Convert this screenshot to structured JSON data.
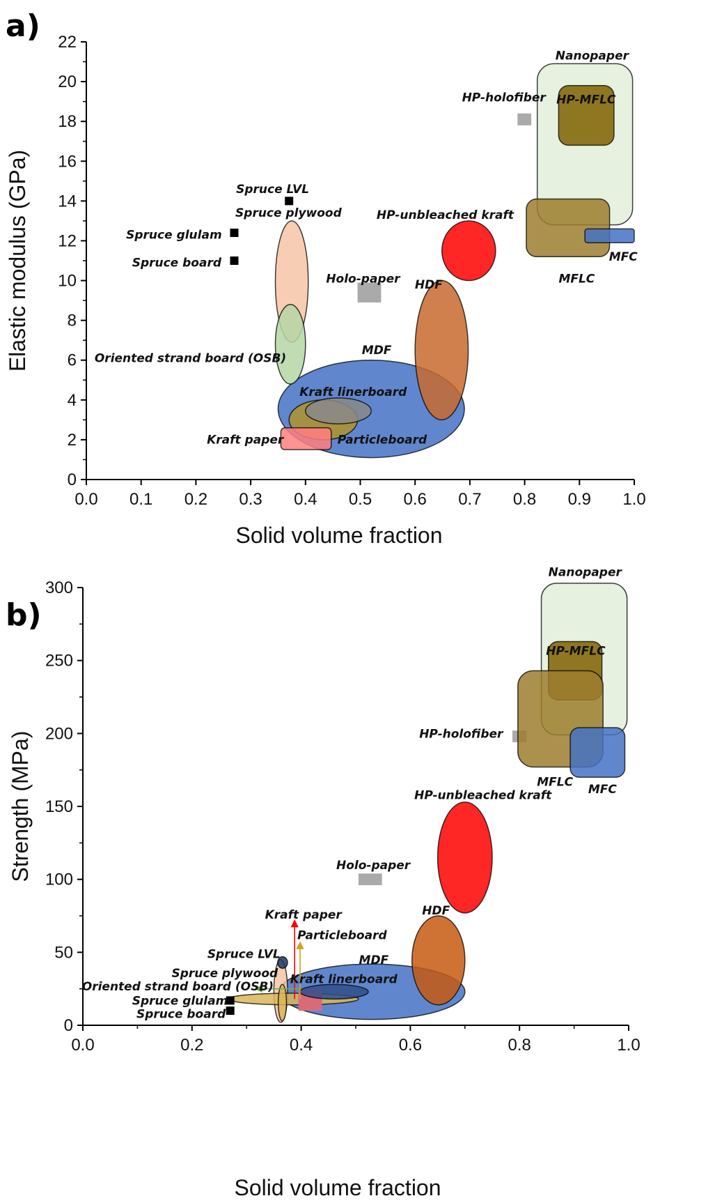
{
  "chart_data": [
    {
      "panel": "a)",
      "type": "scatter",
      "xlabel": "Solid volume fraction",
      "ylabel": "Elastic modulus (GPa)",
      "xlim": [
        0.0,
        1.0
      ],
      "ylim": [
        0,
        22
      ],
      "xticks": [
        0.0,
        0.1,
        0.2,
        0.3,
        0.4,
        0.5,
        0.6,
        0.7,
        0.8,
        0.9,
        1.0
      ],
      "xtick_labels": [
        "0.0",
        "0.1",
        "0.2",
        "0.3",
        "0.4",
        "0.5",
        "0.6",
        "0.7",
        "0.8",
        "0.9",
        "1.0"
      ],
      "yticks": [
        0,
        2,
        4,
        6,
        8,
        10,
        12,
        14,
        16,
        18,
        20,
        22
      ],
      "ytick_labels": [
        "0",
        "2",
        "4",
        "6",
        "8",
        "10",
        "12",
        "14",
        "16",
        "18",
        "20",
        "22"
      ],
      "grid": false,
      "regions": [
        {
          "name": "MDF",
          "shape": "ellipse",
          "color": "#4472c4",
          "x": [
            0.35,
            0.69
          ],
          "y": [
            1.1,
            6.0
          ]
        },
        {
          "name": "Particleboard",
          "shape": "ellipse",
          "color": "#b3922a",
          "x": [
            0.37,
            0.495
          ],
          "y": [
            2.0,
            4.0
          ]
        },
        {
          "name": "Kraft linerboard",
          "shape": "ellipse",
          "color": "#8a8a8a",
          "x": [
            0.4,
            0.52
          ],
          "y": [
            2.8,
            4.1
          ]
        },
        {
          "name": "Kraft paper",
          "shape": "rect",
          "color": "#ff7f7f",
          "x": [
            0.355,
            0.447
          ],
          "y": [
            1.5,
            2.6
          ]
        },
        {
          "name": "Spruce plywood",
          "shape": "ellipse",
          "color": "#f6c6a6",
          "x": [
            0.345,
            0.405
          ],
          "y": [
            6.9,
            13.0
          ]
        },
        {
          "name": "Oriented strand board (OSB)",
          "shape": "ellipse",
          "color": "#b5d6a6",
          "x": [
            0.345,
            0.4
          ],
          "y": [
            4.8,
            8.8
          ]
        },
        {
          "name": "HDF",
          "shape": "ellipse",
          "color": "#c86a2e",
          "x": [
            0.6,
            0.697
          ],
          "y": [
            3.0,
            10.0
          ]
        },
        {
          "name": "HP-unbleached kraft",
          "shape": "ellipse",
          "color": "#ff0000",
          "x": [
            0.649,
            0.747
          ],
          "y": [
            10.0,
            13.0
          ]
        },
        {
          "name": "Holo-paper",
          "shape": "rect",
          "color": "#aaaaaa",
          "x": [
            0.495,
            0.538
          ],
          "y": [
            8.9,
            9.9
          ]
        },
        {
          "name": "HP-holofiber",
          "shape": "rect",
          "color": "#aaaaaa",
          "x": [
            0.787,
            0.812
          ],
          "y": [
            17.8,
            18.4
          ]
        },
        {
          "name": "Nanopaper",
          "shape": "rect",
          "color": "#e2efd9",
          "x": [
            0.823,
            0.997
          ],
          "y": [
            12.8,
            20.9
          ]
        },
        {
          "name": "HP-MFLC",
          "shape": "rect",
          "color": "#7f6000",
          "x": [
            0.862,
            0.963
          ],
          "y": [
            16.8,
            19.8
          ]
        },
        {
          "name": "MFLC",
          "shape": "rect",
          "color": "#9c7e2e",
          "x": [
            0.803,
            0.955
          ],
          "y": [
            11.2,
            14.1
          ]
        },
        {
          "name": "MFC",
          "shape": "rect",
          "color": "#4472c4",
          "x": [
            0.91,
            1.0
          ],
          "y": [
            11.9,
            12.6
          ]
        }
      ],
      "points": [
        {
          "name": "Spruce LVL",
          "x": 0.37,
          "y": 14.0
        },
        {
          "name": "Spruce glulam",
          "x": 0.27,
          "y": 12.4
        },
        {
          "name": "Spruce board",
          "x": 0.27,
          "y": 11.0
        }
      ],
      "annotations": [
        {
          "text": "Nanopaper",
          "x": 0.923,
          "y": 21.1
        },
        {
          "text": "HP-MFLC",
          "x": 0.912,
          "y": 18.9
        },
        {
          "text": "HP-holofiber",
          "x": 0.762,
          "y": 19.0
        },
        {
          "text": "Spruce LVL",
          "x": 0.34,
          "y": 14.4
        },
        {
          "text": "Spruce plywood",
          "x": 0.369,
          "y": 13.2
        },
        {
          "text": "HP-unbleached kraft",
          "x": 0.655,
          "y": 13.1
        },
        {
          "text": "Spruce glulam",
          "x": 0.16,
          "y": 12.1
        },
        {
          "text": "MFC",
          "x": 0.98,
          "y": 11.0
        },
        {
          "text": "Spruce board",
          "x": 0.165,
          "y": 10.7
        },
        {
          "text": "Holo-paper",
          "x": 0.505,
          "y": 9.9
        },
        {
          "text": "MFLC",
          "x": 0.895,
          "y": 9.9
        },
        {
          "text": "HDF",
          "x": 0.625,
          "y": 9.6
        },
        {
          "text": "MDF",
          "x": 0.53,
          "y": 6.3
        },
        {
          "text": "Oriented strand board (OSB)",
          "x": 0.19,
          "y": 5.9
        },
        {
          "text": "Kraft linerboard",
          "x": 0.487,
          "y": 4.2
        },
        {
          "text": "Kraft paper",
          "x": 0.29,
          "y": 1.8
        },
        {
          "text": "Particleboard",
          "x": 0.54,
          "y": 1.8
        }
      ]
    },
    {
      "panel": "b)",
      "type": "scatter",
      "xlabel": "Solid volume fraction",
      "ylabel": "Strength (MPa)",
      "xlim": [
        0.0,
        1.0
      ],
      "ylim": [
        0,
        300
      ],
      "xticks": [
        0.0,
        0.2,
        0.4,
        0.6,
        0.8,
        1.0
      ],
      "xtick_labels": [
        "0.0",
        "0.2",
        "0.4",
        "0.6",
        "0.8",
        "1.0"
      ],
      "yticks": [
        0,
        50,
        100,
        150,
        200,
        250,
        300
      ],
      "ytick_labels": [
        "0",
        "50",
        "100",
        "150",
        "200",
        "250",
        "300"
      ],
      "grid": false,
      "regions": [
        {
          "name": "MDF",
          "shape": "ellipse",
          "color": "#4472c4",
          "x": [
            0.36,
            0.7
          ],
          "y": [
            4.0,
            42.0
          ]
        },
        {
          "name": "Spruce plywood",
          "shape": "ellipse",
          "color": "#f6c6a6",
          "x": [
            0.35,
            0.375
          ],
          "y": [
            2.0,
            45.0
          ]
        },
        {
          "name": "Spruce LVL",
          "shape": "ellipse",
          "color": "#1f3864",
          "x": [
            0.357,
            0.375
          ],
          "y": [
            39.0,
            47.0
          ]
        },
        {
          "name": "Oriented strand board (OSB)",
          "shape": "ellipse",
          "color": "#d9b65a",
          "x": [
            0.265,
            0.505
          ],
          "y": [
            14.0,
            22.0
          ]
        },
        {
          "name": "Spruce glulam",
          "shape": "ellipse",
          "color": "#d9b65a",
          "x": [
            0.358,
            0.373
          ],
          "y": [
            3.0,
            28.0
          ]
        },
        {
          "name": "Kraft paper",
          "shape": "rect",
          "color": "#d96a7a",
          "x": [
            0.395,
            0.438
          ],
          "y": [
            10.0,
            25.0
          ]
        },
        {
          "name": "Kraft linerboard",
          "shape": "ellipse",
          "color": "#2f4f8a",
          "x": [
            0.398,
            0.523
          ],
          "y": [
            18.0,
            28.0
          ]
        },
        {
          "name": "HDF",
          "shape": "ellipse",
          "color": "#c55a11",
          "x": [
            0.603,
            0.7
          ],
          "y": [
            14.0,
            75.0
          ]
        },
        {
          "name": "HP-unbleached kraft",
          "shape": "ellipse",
          "color": "#ff0000",
          "x": [
            0.65,
            0.75
          ],
          "y": [
            77.0,
            153.0
          ]
        },
        {
          "name": "Holo-paper",
          "shape": "rect",
          "color": "#aaaaaa",
          "x": [
            0.505,
            0.548
          ],
          "y": [
            96.0,
            104.0
          ]
        },
        {
          "name": "HP-holofiber",
          "shape": "rect",
          "color": "#aaaaaa",
          "x": [
            0.787,
            0.813
          ],
          "y": [
            194.0,
            202.0
          ]
        },
        {
          "name": "Nanopaper",
          "shape": "rect",
          "color": "#e2efd9",
          "x": [
            0.84,
            0.997
          ],
          "y": [
            199.0,
            303.0
          ]
        },
        {
          "name": "HP-MFLC",
          "shape": "rect",
          "color": "#7f6000",
          "x": [
            0.853,
            0.951
          ],
          "y": [
            223.0,
            263.0
          ]
        },
        {
          "name": "MFLC",
          "shape": "rect",
          "color": "#9c7e2e",
          "x": [
            0.797,
            0.953
          ],
          "y": [
            177.0,
            243.0
          ]
        },
        {
          "name": "MFC",
          "shape": "rect",
          "color": "#4472c4",
          "x": [
            0.893,
            0.993
          ],
          "y": [
            170.0,
            204.0
          ]
        }
      ],
      "points": [
        {
          "name": "Spruce glulam",
          "x": 0.27,
          "y": 17.0
        },
        {
          "name": "Spruce board",
          "x": 0.27,
          "y": 10.0
        }
      ],
      "arrows": [
        {
          "name": "Kraft paper",
          "color": "#ff0000",
          "x": 0.388,
          "y": [
            18.0,
            72.0
          ]
        },
        {
          "name": "Particleboard",
          "color": "#d4a017",
          "x": 0.398,
          "y": [
            18.0,
            57.0
          ]
        },
        {
          "name": "Oriented strand board (OSB)",
          "color": "#70ad47",
          "x": [
            0.398,
            0.316
          ],
          "y": 25.0
        }
      ],
      "annotations": [
        {
          "text": "Nanopaper",
          "x": 0.92,
          "y": 308.0
        },
        {
          "text": "HP-MFLC",
          "x": 0.903,
          "y": 254.0
        },
        {
          "text": "HP-holofiber",
          "x": 0.693,
          "y": 197.0
        },
        {
          "text": "MFLC",
          "x": 0.865,
          "y": 164.0
        },
        {
          "text": "MFC",
          "x": 0.952,
          "y": 159.0
        },
        {
          "text": "HP-unbleached kraft",
          "x": 0.733,
          "y": 155.0
        },
        {
          "text": "Holo-paper",
          "x": 0.532,
          "y": 107.0
        },
        {
          "text": "Kraft paper",
          "x": 0.404,
          "y": 73.0
        },
        {
          "text": "HDF",
          "x": 0.647,
          "y": 76.0
        },
        {
          "text": "Particleboard",
          "x": 0.475,
          "y": 59.0
        },
        {
          "text": "Spruce LVL",
          "x": 0.295,
          "y": 46.0
        },
        {
          "text": "MDF",
          "x": 0.533,
          "y": 42.0
        },
        {
          "text": "Spruce plywood",
          "x": 0.26,
          "y": 33.0
        },
        {
          "text": "Oriented strand board (OSB)",
          "x": 0.174,
          "y": 24.0
        },
        {
          "text": "Kraft linerboard",
          "x": 0.478,
          "y": 29.0
        },
        {
          "text": "Spruce glulam",
          "x": 0.178,
          "y": 14.0
        },
        {
          "text": "Spruce board",
          "x": 0.18,
          "y": 5.0
        }
      ]
    }
  ]
}
